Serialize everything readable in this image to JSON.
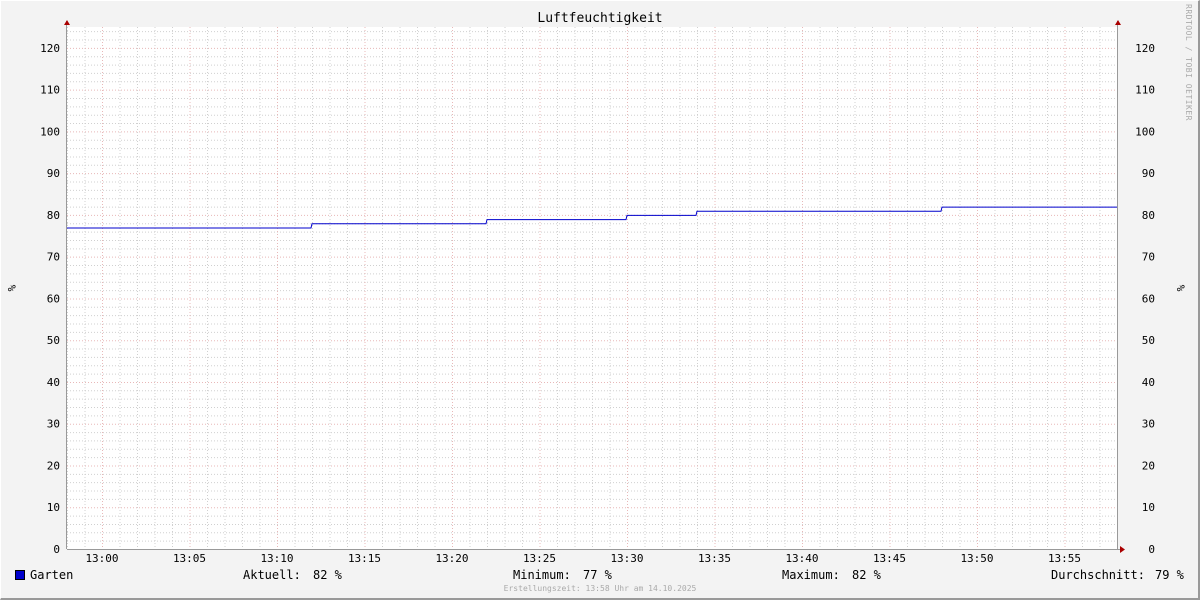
{
  "chart_data": {
    "type": "line",
    "title": "Luftfeuchtigkeit",
    "ylabel": "%",
    "ylabel_right": "%",
    "ylim": [
      0,
      125
    ],
    "yticks": [
      0,
      10,
      20,
      30,
      40,
      50,
      60,
      70,
      80,
      90,
      100,
      110,
      120
    ],
    "xlim": [
      "12:58",
      "13:58"
    ],
    "xticks": [
      "13:00",
      "13:05",
      "13:10",
      "13:15",
      "13:20",
      "13:25",
      "13:30",
      "13:35",
      "13:40",
      "13:45",
      "13:50",
      "13:55"
    ],
    "grid": true,
    "series": [
      {
        "name": "Garten",
        "color": "#0000cc",
        "step": true,
        "x": [
          "12:58",
          "13:12",
          "13:22",
          "13:30",
          "13:34",
          "13:48",
          "13:58"
        ],
        "y": [
          77,
          78,
          79,
          80,
          81,
          82,
          82
        ]
      }
    ]
  },
  "legend": {
    "series_name": "Garten",
    "current_label": "Aktuell:",
    "current_value": "82 %",
    "min_label": "Minimum:",
    "min_value": "77 %",
    "max_label": "Maximum:",
    "max_value": "82 %",
    "avg_label": "Durchschnitt:",
    "avg_value": "79 %"
  },
  "footer": "Erstellungszeit: 13:58 Uhr am 14.10.2025",
  "watermark": "RRDTOOL / TOBI OETIKER"
}
